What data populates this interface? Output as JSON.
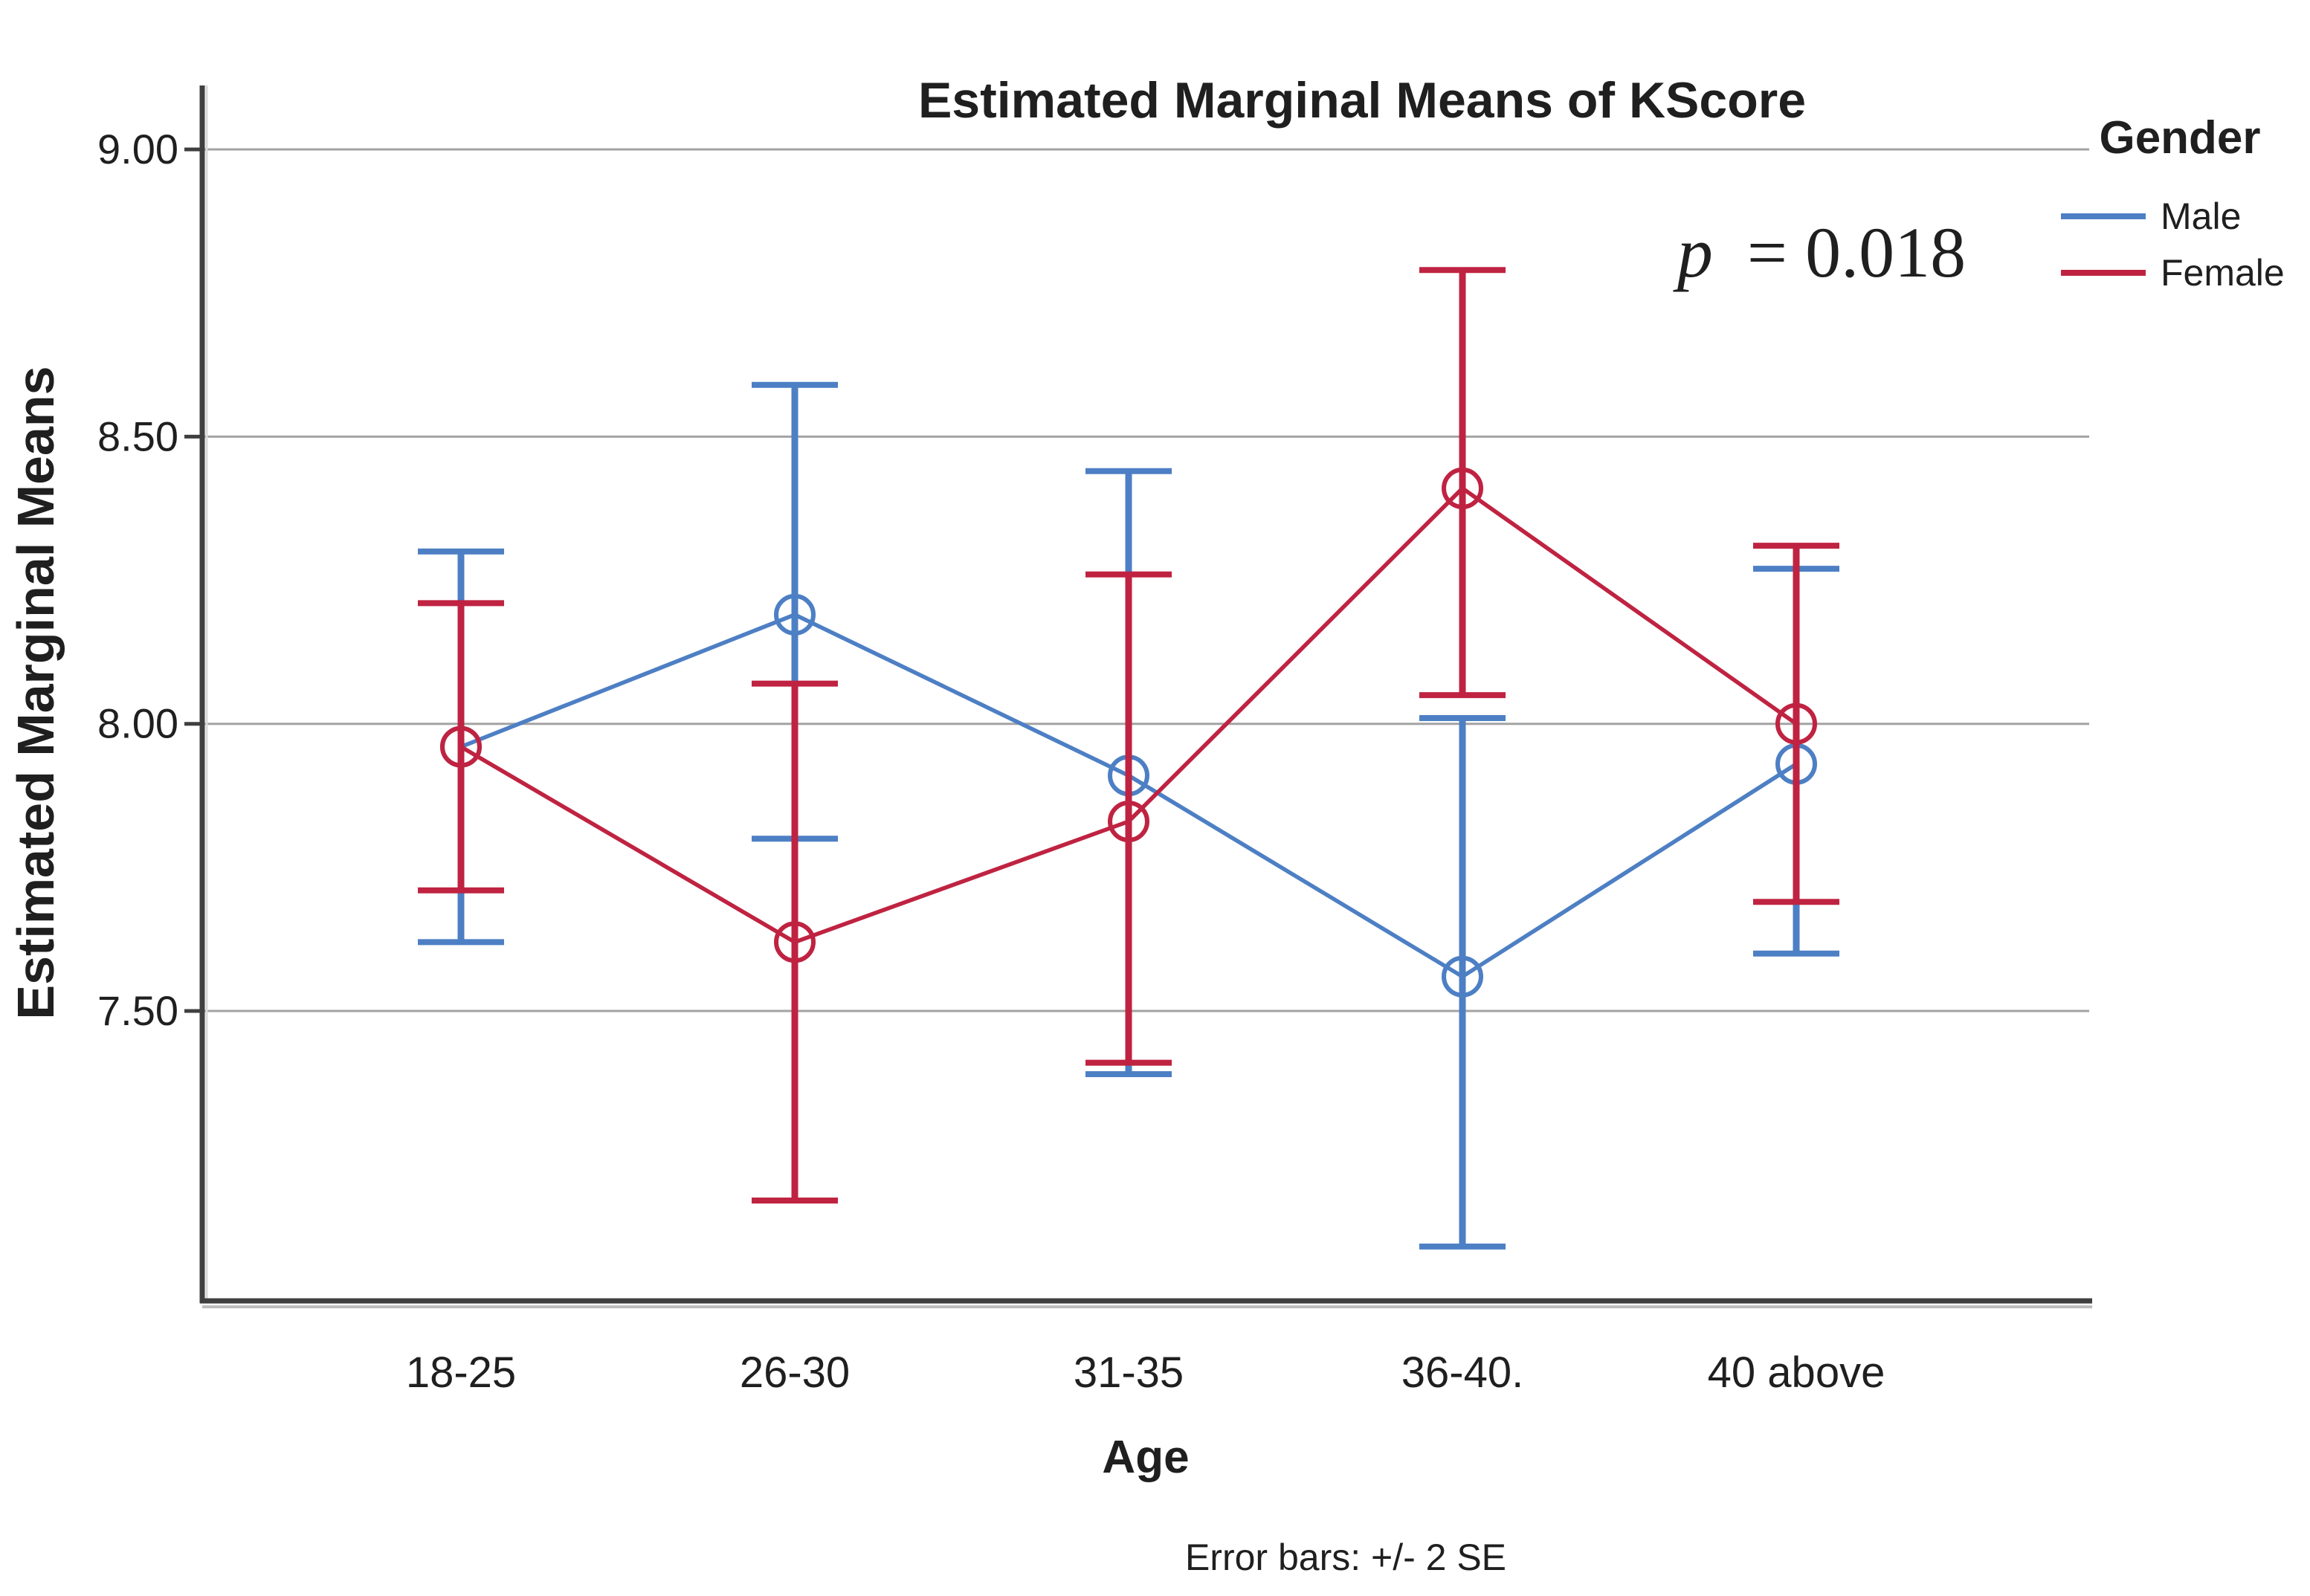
{
  "annotation": {
    "p_italic": "p",
    "p_rest": "= 0.018"
  },
  "legend": {
    "title": "Gender"
  },
  "chart_data": {
    "type": "line",
    "title": "Estimated Marginal Means of KScore",
    "xlabel": "Age",
    "ylabel": "Estimated Marginal Means",
    "footnote": "Error bars: +/- 2 SE",
    "p_value_annotation": "p = 0.018",
    "categories": [
      "18-25",
      "26-30",
      "31-35",
      "36-40.",
      "40 above"
    ],
    "y_ticks": [
      "9.00",
      "8.50",
      "8.00",
      "7.50"
    ],
    "ylim": [
      7.0,
      9.11
    ],
    "grid": true,
    "legend_position": "top-right",
    "legend_title": "Gender",
    "error_bar_definition": "+/- 2 SE",
    "series": [
      {
        "name": "Male",
        "color": "#4d7fc4",
        "means": [
          7.96,
          8.19,
          7.91,
          7.56,
          7.93
        ],
        "upper": [
          8.3,
          8.59,
          8.44,
          8.01,
          8.27
        ],
        "lower": [
          7.62,
          7.8,
          7.39,
          7.09,
          7.6
        ]
      },
      {
        "name": "Female",
        "color": "#bf2341",
        "means": [
          7.96,
          7.62,
          7.83,
          8.41,
          8.0
        ],
        "upper": [
          8.21,
          8.07,
          8.26,
          8.79,
          8.31
        ],
        "lower": [
          7.71,
          7.17,
          7.41,
          8.05,
          7.69
        ]
      }
    ],
    "colors": {
      "male": "#4d7fc4",
      "female": "#bf2341",
      "gridline": "#a3a3a3",
      "axis": "#3f3f3f",
      "text": "#1f1f1f"
    }
  }
}
